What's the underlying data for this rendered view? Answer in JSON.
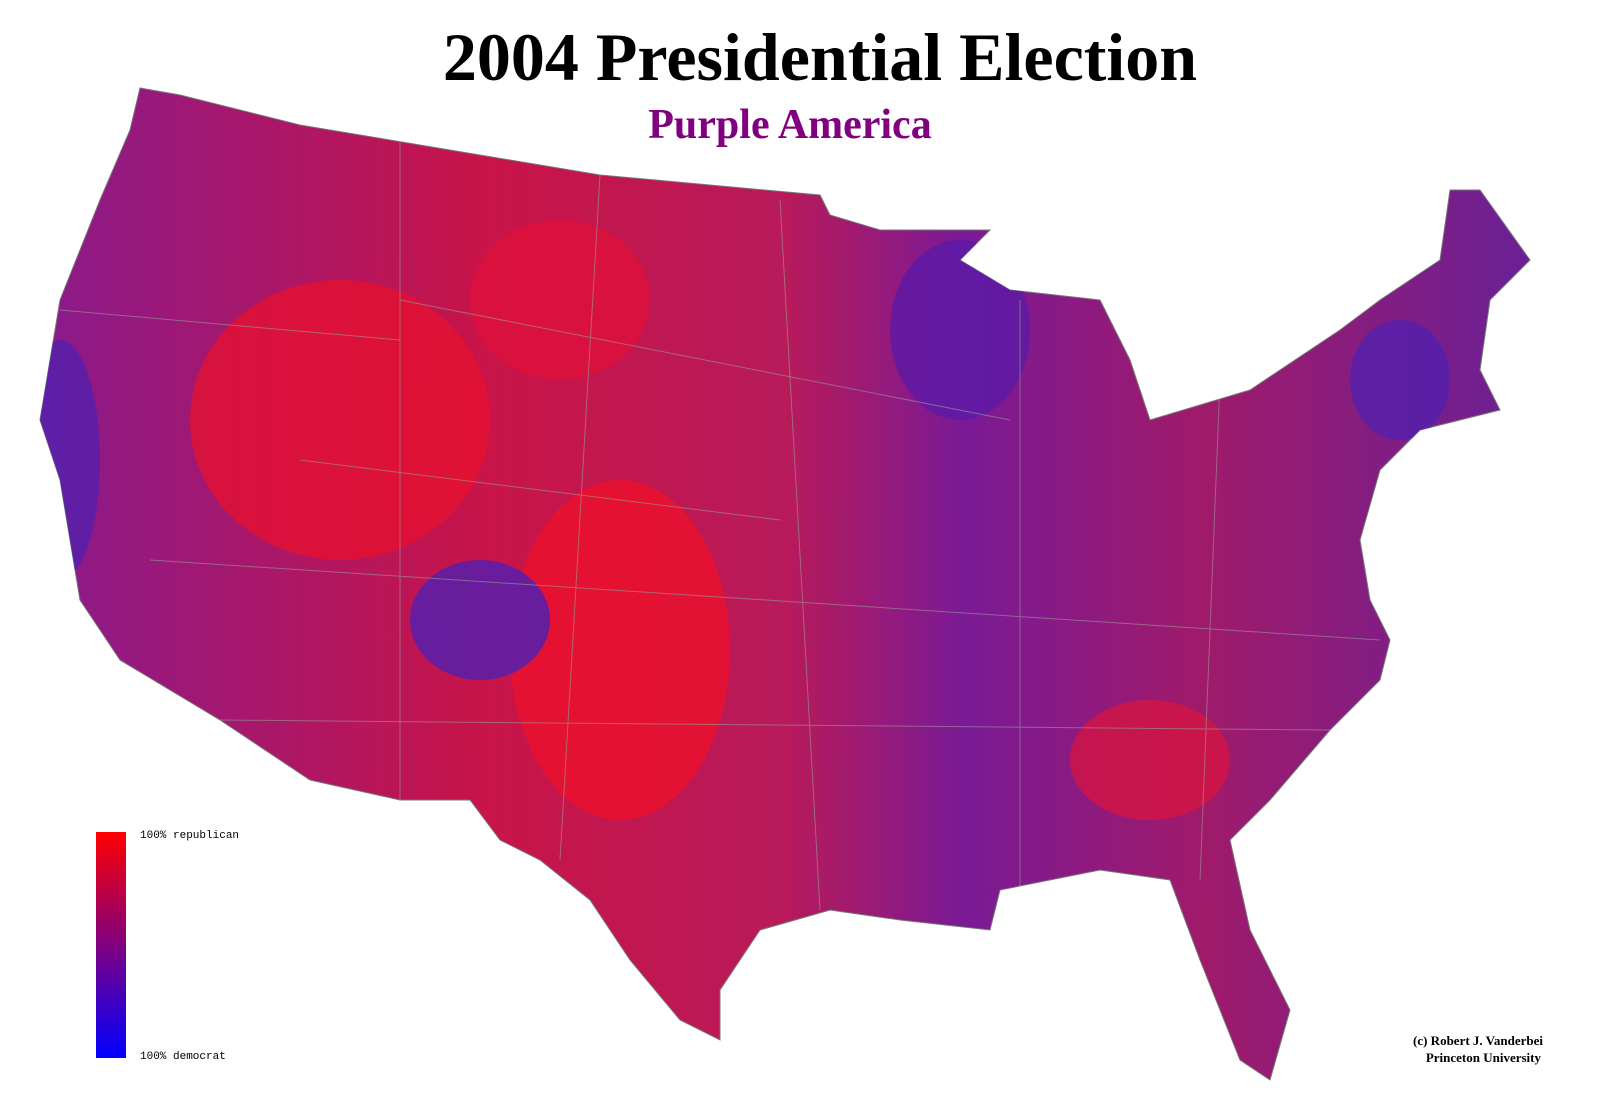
{
  "title": "2004 Presidential Election",
  "subtitle": "Purple America",
  "legend": {
    "top": "100% republican",
    "bottom": "100% democrat"
  },
  "credit": [
    "(c) Robert J. Vanderbei",
    "Princeton University"
  ]
}
